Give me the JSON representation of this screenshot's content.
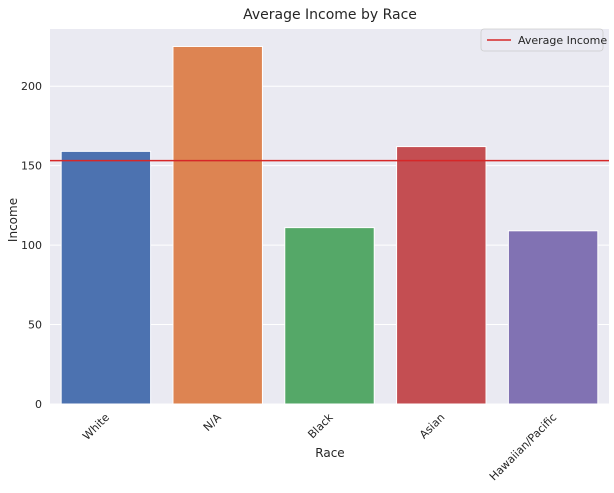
{
  "chart_data": {
    "type": "bar",
    "title": "Average Income by Race",
    "xlabel": "Race",
    "ylabel": "Income",
    "categories": [
      "White",
      "N/A",
      "Black",
      "Asian",
      "Hawaiian/Pacific"
    ],
    "values": [
      159,
      225,
      111,
      162,
      109
    ],
    "colors": [
      "#4c72b0",
      "#dd8452",
      "#55a868",
      "#c44e52",
      "#8172b3"
    ],
    "reference_line": {
      "name": "Average Income",
      "value": 153.2,
      "color": "#d62728"
    },
    "yticks": [
      0,
      50,
      100,
      150,
      200
    ],
    "ylim": [
      0,
      236
    ],
    "grid": true,
    "legend_position": "top-right",
    "background": "#eaeaf2"
  }
}
